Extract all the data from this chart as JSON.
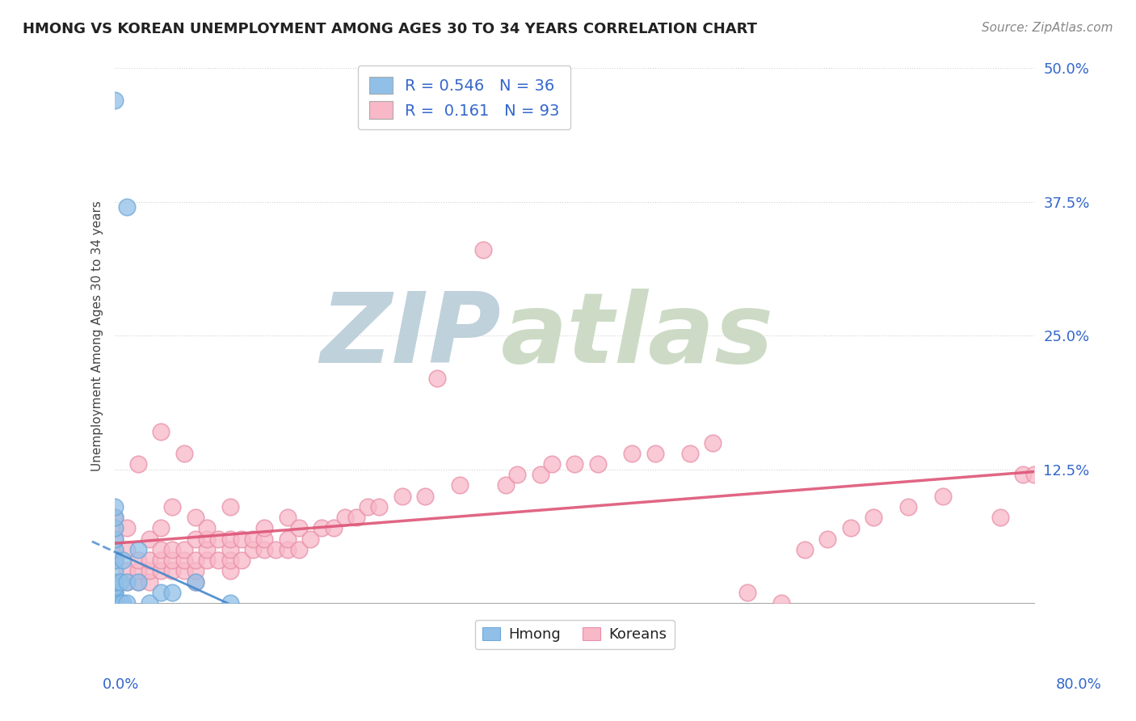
{
  "title": "HMONG VS KOREAN UNEMPLOYMENT AMONG AGES 30 TO 34 YEARS CORRELATION CHART",
  "source": "Source: ZipAtlas.com",
  "ylabel": "Unemployment Among Ages 30 to 34 years",
  "xlim": [
    0.0,
    0.8
  ],
  "ylim": [
    0.0,
    0.5
  ],
  "yticks": [
    0.0,
    0.125,
    0.25,
    0.375,
    0.5
  ],
  "ytick_labels": [
    "",
    "12.5%",
    "25.0%",
    "37.5%",
    "50.0%"
  ],
  "bg_color": "#ffffff",
  "grid_color": "#cccccc",
  "watermark_zip": "ZIP",
  "watermark_atlas": "atlas",
  "watermark_color": "#c8d8e8",
  "hmong_color": "#90c0e8",
  "hmong_edge_color": "#70a8d8",
  "korean_color": "#f8b8c8",
  "korean_edge_color": "#e890a8",
  "hmong_line_color": "#4488cc",
  "korean_line_color": "#dd5577",
  "hmong_R": 0.546,
  "hmong_N": 36,
  "korean_R": 0.161,
  "korean_N": 93,
  "hmong_scatter_x": [
    0.0,
    0.0,
    0.0,
    0.0,
    0.0,
    0.0,
    0.0,
    0.0,
    0.0,
    0.0,
    0.0,
    0.0,
    0.0,
    0.0,
    0.0,
    0.0,
    0.0,
    0.0,
    0.0,
    0.0,
    0.0,
    0.0,
    0.005,
    0.005,
    0.007,
    0.007,
    0.01,
    0.01,
    0.01,
    0.02,
    0.02,
    0.03,
    0.04,
    0.05,
    0.07,
    0.1
  ],
  "hmong_scatter_y": [
    0.0,
    0.0,
    0.0,
    0.0,
    0.0,
    0.0,
    0.0,
    0.0,
    0.005,
    0.01,
    0.01,
    0.015,
    0.02,
    0.02,
    0.03,
    0.04,
    0.05,
    0.06,
    0.07,
    0.08,
    0.09,
    0.47,
    0.0,
    0.02,
    0.0,
    0.04,
    0.0,
    0.02,
    0.37,
    0.02,
    0.05,
    0.0,
    0.01,
    0.01,
    0.02,
    0.0
  ],
  "korean_scatter_x": [
    0.0,
    0.0,
    0.0,
    0.0,
    0.0,
    0.0,
    0.01,
    0.01,
    0.01,
    0.01,
    0.02,
    0.02,
    0.02,
    0.02,
    0.03,
    0.03,
    0.03,
    0.03,
    0.04,
    0.04,
    0.04,
    0.04,
    0.04,
    0.05,
    0.05,
    0.05,
    0.05,
    0.06,
    0.06,
    0.06,
    0.06,
    0.07,
    0.07,
    0.07,
    0.07,
    0.07,
    0.08,
    0.08,
    0.08,
    0.08,
    0.09,
    0.09,
    0.1,
    0.1,
    0.1,
    0.1,
    0.1,
    0.11,
    0.11,
    0.12,
    0.12,
    0.13,
    0.13,
    0.13,
    0.14,
    0.15,
    0.15,
    0.15,
    0.16,
    0.16,
    0.17,
    0.18,
    0.19,
    0.2,
    0.21,
    0.22,
    0.23,
    0.25,
    0.27,
    0.28,
    0.3,
    0.32,
    0.34,
    0.35,
    0.37,
    0.38,
    0.4,
    0.42,
    0.45,
    0.47,
    0.5,
    0.52,
    0.55,
    0.58,
    0.6,
    0.62,
    0.64,
    0.66,
    0.69,
    0.72,
    0.77,
    0.79,
    0.8
  ],
  "korean_scatter_y": [
    0.02,
    0.04,
    0.05,
    0.06,
    0.07,
    0.08,
    0.02,
    0.03,
    0.05,
    0.07,
    0.02,
    0.03,
    0.04,
    0.13,
    0.02,
    0.03,
    0.04,
    0.06,
    0.03,
    0.04,
    0.05,
    0.07,
    0.16,
    0.03,
    0.04,
    0.05,
    0.09,
    0.03,
    0.04,
    0.05,
    0.14,
    0.02,
    0.03,
    0.04,
    0.06,
    0.08,
    0.04,
    0.05,
    0.06,
    0.07,
    0.04,
    0.06,
    0.03,
    0.04,
    0.05,
    0.06,
    0.09,
    0.04,
    0.06,
    0.05,
    0.06,
    0.05,
    0.06,
    0.07,
    0.05,
    0.05,
    0.06,
    0.08,
    0.05,
    0.07,
    0.06,
    0.07,
    0.07,
    0.08,
    0.08,
    0.09,
    0.09,
    0.1,
    0.1,
    0.21,
    0.11,
    0.33,
    0.11,
    0.12,
    0.12,
    0.13,
    0.13,
    0.13,
    0.14,
    0.14,
    0.14,
    0.15,
    0.01,
    0.0,
    0.05,
    0.06,
    0.07,
    0.08,
    0.09,
    0.1,
    0.08,
    0.12,
    0.12
  ],
  "legend_hmong_label": "Hmong",
  "legend_korean_label": "Koreans"
}
